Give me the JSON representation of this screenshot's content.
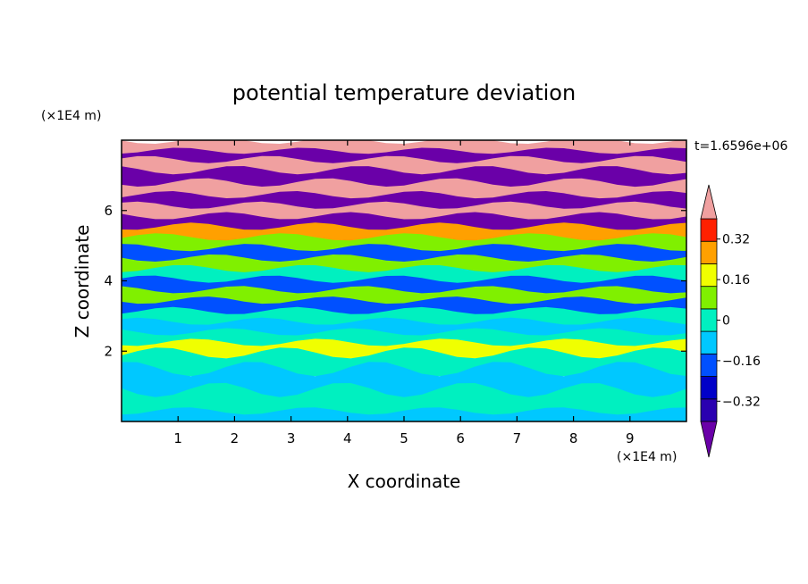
{
  "chart_data": {
    "type": "heatmap",
    "title": "potential temperature deviation",
    "xlabel": "X coordinate",
    "ylabel": "Z coordinate",
    "x_unit": "(×1E4 m)",
    "y_unit": "(×1E4 m)",
    "time_label": "t=1.6596e+06",
    "xlim": [
      0,
      10
    ],
    "ylim": [
      0,
      8
    ],
    "x_ticks": [
      1,
      2,
      3,
      4,
      5,
      6,
      7,
      8,
      9
    ],
    "y_ticks": [
      2,
      4,
      6
    ],
    "colorbar": {
      "tick_values": [
        0.32,
        0.16,
        0,
        -0.16,
        -0.32
      ],
      "tick_labels": [
        "0.32",
        "0.16",
        "0",
        "−0.16",
        "−0.32"
      ],
      "levels": [
        -0.4,
        -0.32,
        -0.24,
        -0.16,
        -0.08,
        0,
        0.08,
        0.16,
        0.24,
        0.32,
        0.4
      ],
      "colors": [
        "#6a00a8",
        "#2a00b0",
        "#0000c8",
        "#0050ff",
        "#00c8ff",
        "#00f0c0",
        "#80f000",
        "#f0ff00",
        "#ffa000",
        "#ff2000",
        "#f0a0a0"
      ]
    },
    "bands": [
      {
        "z": 7.8,
        "value": 0.45
      },
      {
        "z": 7.6,
        "value": -0.45
      },
      {
        "z": 7.3,
        "value": 0.45
      },
      {
        "z": 7.0,
        "value": -0.45
      },
      {
        "z": 6.6,
        "value": 0.45
      },
      {
        "z": 6.3,
        "value": -0.45
      },
      {
        "z": 6.0,
        "value": 0.45
      },
      {
        "z": 5.7,
        "value": -0.45
      },
      {
        "z": 5.4,
        "value": 0.3
      },
      {
        "z": 5.1,
        "value": 0.12
      },
      {
        "z": 4.8,
        "value": -0.1
      },
      {
        "z": 4.5,
        "value": 0.1
      },
      {
        "z": 4.2,
        "value": 0.0
      },
      {
        "z": 3.9,
        "value": -0.12
      },
      {
        "z": 3.6,
        "value": 0.08
      },
      {
        "z": 3.3,
        "value": -0.1
      },
      {
        "z": 3.0,
        "value": 0.05
      },
      {
        "z": 2.7,
        "value": -0.08
      },
      {
        "z": 2.4,
        "value": 0.05
      },
      {
        "z": 2.1,
        "value": 0.2
      },
      {
        "z": 1.8,
        "value": 0.02
      },
      {
        "z": 1.2,
        "value": -0.02
      },
      {
        "z": 0.6,
        "value": 0.02
      },
      {
        "z": 0.0,
        "value": -0.02
      }
    ]
  }
}
